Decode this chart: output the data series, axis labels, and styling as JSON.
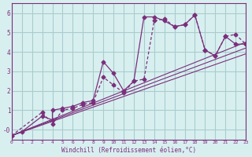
{
  "background_color": "#d8eff0",
  "grid_color": "#aacccc",
  "line_color": "#7b2f7b",
  "xlabel": "Windchill (Refroidissement éolien,°C)",
  "xlim": [
    0,
    23
  ],
  "ylim": [
    -0.5,
    6.5
  ],
  "xticks": [
    0,
    1,
    2,
    3,
    4,
    5,
    6,
    7,
    8,
    9,
    10,
    11,
    12,
    13,
    14,
    15,
    16,
    17,
    18,
    19,
    20,
    21,
    22,
    23
  ],
  "yticks": [
    0,
    1,
    2,
    3,
    4,
    5,
    6
  ],
  "ytick_labels": [
    "-0",
    "1",
    "2",
    "3",
    "4",
    "5",
    "6"
  ],
  "series1_x": [
    0,
    1,
    3,
    4,
    4,
    5,
    6,
    7,
    8,
    9,
    10,
    11,
    12,
    13,
    14,
    15,
    16,
    17,
    18,
    19,
    20,
    21,
    22,
    23
  ],
  "series1_y": [
    -0.3,
    -0.1,
    0.7,
    0.5,
    1.0,
    1.1,
    1.2,
    1.4,
    1.5,
    3.5,
    2.9,
    2.0,
    2.5,
    5.8,
    5.8,
    5.6,
    5.3,
    5.4,
    5.9,
    4.1,
    3.8,
    4.8,
    4.4,
    4.4
  ],
  "series2_x": [
    0,
    3,
    4,
    5,
    6,
    7,
    8,
    9,
    10,
    11,
    12,
    13,
    14,
    15,
    16,
    17,
    18,
    19,
    20,
    21,
    22,
    23
  ],
  "series2_y": [
    -0.3,
    0.9,
    0.3,
    1.0,
    1.1,
    1.3,
    1.4,
    2.7,
    2.3,
    1.9,
    2.5,
    2.6,
    5.6,
    5.7,
    5.3,
    5.4,
    5.9,
    4.1,
    3.8,
    4.8,
    4.9,
    4.4
  ],
  "line1_x": [
    0,
    23
  ],
  "line1_y": [
    -0.3,
    4.5
  ],
  "line2_x": [
    0,
    23
  ],
  "line2_y": [
    -0.3,
    4.2
  ],
  "line3_x": [
    0,
    23
  ],
  "line3_y": [
    -0.3,
    3.9
  ]
}
